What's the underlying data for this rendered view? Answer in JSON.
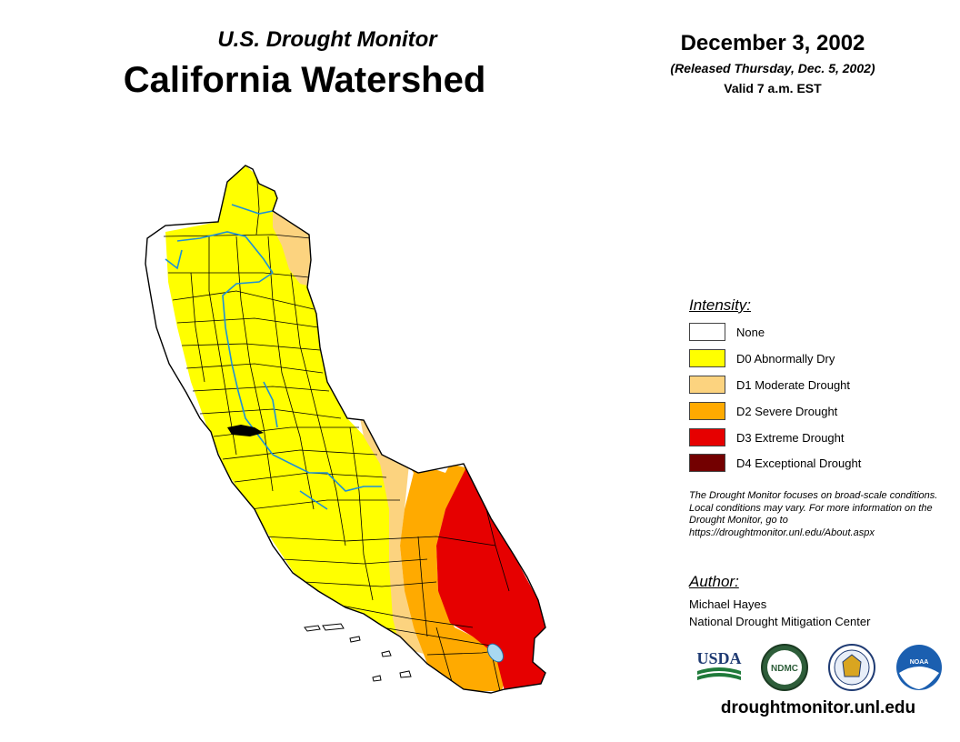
{
  "header": {
    "subtitle": "U.S. Drought Monitor",
    "title": "California Watershed",
    "date": "December 3, 2002",
    "released": "(Released Thursday, Dec. 5, 2002)",
    "valid": "Valid 7 a.m. EST"
  },
  "legend": {
    "heading": "Intensity:",
    "items": [
      {
        "label": "None",
        "color": "#ffffff"
      },
      {
        "label": "D0 Abnormally Dry",
        "color": "#ffff00"
      },
      {
        "label": "D1 Moderate Drought",
        "color": "#fcd37f"
      },
      {
        "label": "D2 Severe Drought",
        "color": "#ffaa00"
      },
      {
        "label": "D3 Extreme Drought",
        "color": "#e60000"
      },
      {
        "label": "D4 Exceptional Drought",
        "color": "#730000"
      }
    ]
  },
  "note": "The Drought Monitor focuses on broad-scale conditions. Local conditions may vary. For more information on the Drought Monitor, go to https://droughtmonitor.unl.edu/About.aspx",
  "author": {
    "heading": "Author:",
    "name": "Michael Hayes",
    "organization": "National Drought Mitigation Center"
  },
  "logos": {
    "usda": "USDA",
    "ndmc": "NDMC",
    "commerce": "commerce-seal-icon",
    "noaa": "NOAA"
  },
  "website": "droughtmonitor.unl.edu",
  "colors": {
    "river": "#1e90d6",
    "boundary": "#000000",
    "lake": "#a8d8f0"
  }
}
